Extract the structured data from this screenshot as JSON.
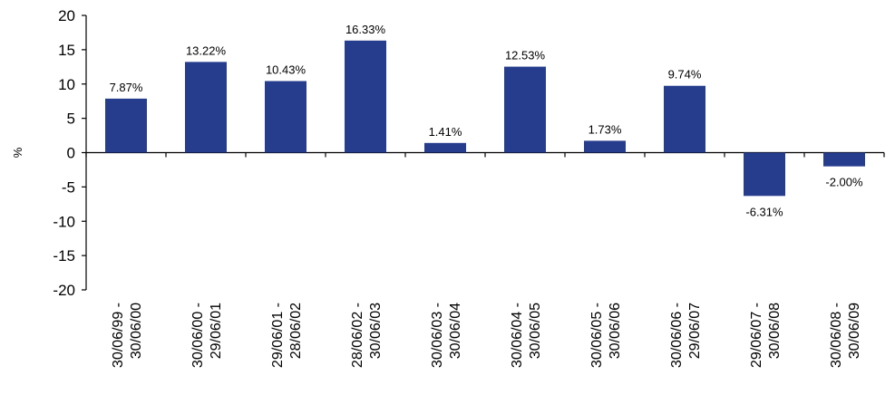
{
  "chart_data": {
    "type": "bar",
    "title": "",
    "xlabel": "",
    "ylabel": "%",
    "ylim": [
      -20,
      20
    ],
    "yticks": [
      20,
      15,
      10,
      5,
      0,
      -5,
      -10,
      -15,
      -20
    ],
    "grid": false,
    "legend": "none",
    "bar_color": "#263d8e",
    "categories": [
      [
        "30/06/99 -",
        "30/06/00"
      ],
      [
        "30/06/00 -",
        "29/06/01"
      ],
      [
        "29/06/01 -",
        "28/06/02"
      ],
      [
        "28/06/02 -",
        "30/06/03"
      ],
      [
        "30/06/03 -",
        "30/06/04"
      ],
      [
        "30/06/04 -",
        "30/06/05"
      ],
      [
        "30/06/05 -",
        "30/06/06"
      ],
      [
        "30/06/06 -",
        "29/06/07"
      ],
      [
        "29/06/07 -",
        "30/06/08"
      ],
      [
        "30/06/08 -",
        "30/06/09"
      ]
    ],
    "values": [
      7.87,
      13.22,
      10.43,
      16.33,
      1.41,
      12.53,
      1.73,
      9.74,
      -6.31,
      -2.0
    ],
    "data_labels": [
      "7.87%",
      "13.22%",
      "10.43%",
      "16.33%",
      "1.41%",
      "12.53%",
      "1.73%",
      "9.74%",
      "-6.31%",
      "-2.00%"
    ]
  }
}
